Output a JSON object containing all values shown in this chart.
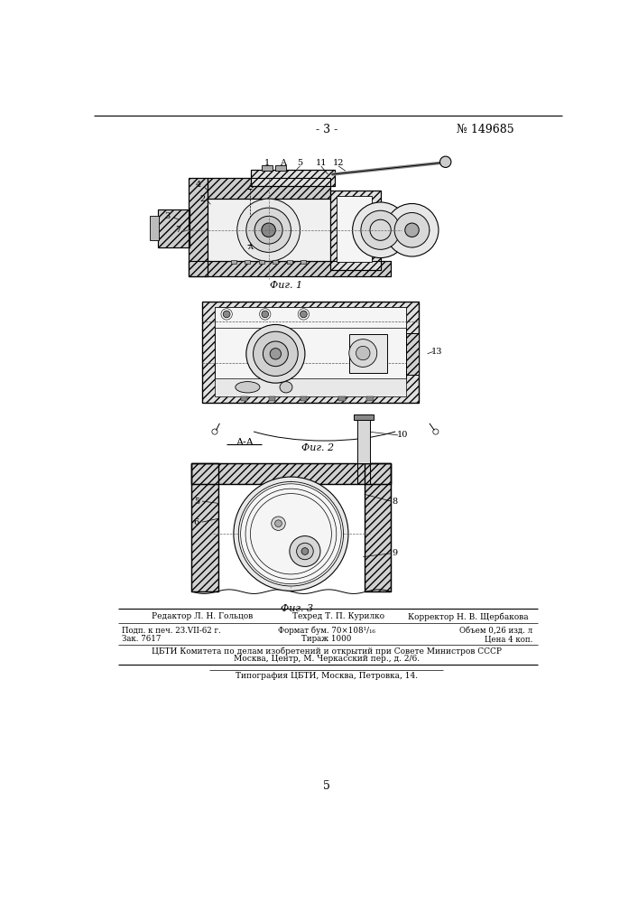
{
  "page_number": "- 3 -",
  "patent_number": "№ 149685",
  "fig1_caption": "Фиг. 1",
  "fig2_caption": "Фиг. 2",
  "fig3_caption": "Фиг. 3",
  "section_label": "A-A",
  "footer_editor": "Редактор Л. Н. Гольцов",
  "footer_techred": "Техред Т. П. Курилко",
  "footer_corrector": "Корректор Н. В. Щербакова",
  "footer_podp": "Подп. к печ. 23.VII-62 г.",
  "footer_format": "Формат бум. 70×108¹/₁₆",
  "footer_obem": "Объем 0,26 изд. л",
  "footer_zak": "Зак. 7617",
  "footer_tirazh": "Тираж 1000",
  "footer_tsena": "Цена 4 коп.",
  "footer_cbti1": "ЦБТИ Комитета по делам изобретений и открытий при Совете Министров СССР",
  "footer_cbti2": "Москва, Центр, М. Черкасский пер., д. 2/6.",
  "footer_tip": "Типография ЦБТИ, Москва, Петровка, 14.",
  "page_bottom_number": "5",
  "bg_color": "#ffffff"
}
